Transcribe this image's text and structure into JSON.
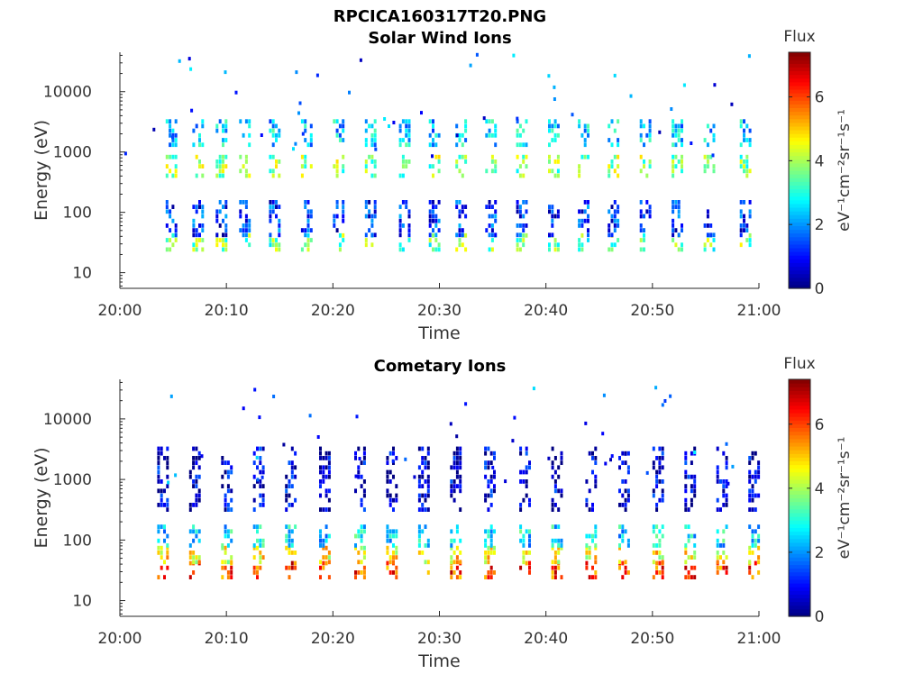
{
  "figure": {
    "title": "RPCICA160317T20.PNG"
  },
  "chart_data": [
    {
      "type": "heatmap",
      "title": "Solar Wind Ions",
      "xlabel": "Time",
      "ylabel": "Energy (eV)",
      "x_range": [
        "20:00",
        "21:00"
      ],
      "x_ticks": [
        "20:00",
        "20:10",
        "20:20",
        "20:30",
        "20:40",
        "20:50",
        "21:00"
      ],
      "y_scale": "log",
      "y_range": [
        5.5,
        45000
      ],
      "y_ticks": [
        10,
        100,
        1000,
        10000
      ],
      "y_tick_labels": [
        "10",
        "100",
        "1000",
        "10000"
      ],
      "colorbar": {
        "title": "Flux",
        "label": "eV⁻¹cm⁻²sr⁻¹s⁻¹",
        "range": [
          0,
          7.4
        ],
        "ticks": [
          0,
          2,
          4,
          6
        ],
        "colormap": "jet"
      },
      "scan_start_min": [
        4.3,
        6.8,
        9.0,
        11.2,
        14.0,
        17.0,
        20.0,
        23.0,
        26.2,
        29.0,
        31.5,
        34.3,
        37.2,
        40.2,
        43.0,
        45.8,
        48.8,
        51.8,
        54.8,
        58.2
      ],
      "components": [
        {
          "emin": 25,
          "emax": 45,
          "level": 3.6
        },
        {
          "emin": 45,
          "emax": 160,
          "level": 1.2
        },
        {
          "emin": 400,
          "emax": 900,
          "level": 3.8
        },
        {
          "emin": 1200,
          "emax": 3500,
          "level": 2.4
        }
      ]
    },
    {
      "type": "heatmap",
      "title": "Cometary Ions",
      "xlabel": "Time",
      "ylabel": "Energy (eV)",
      "x_range": [
        "20:00",
        "21:00"
      ],
      "x_ticks": [
        "20:00",
        "20:10",
        "20:20",
        "20:30",
        "20:40",
        "20:50",
        "21:00"
      ],
      "y_scale": "log",
      "y_range": [
        5.5,
        45000
      ],
      "y_ticks": [
        10,
        100,
        1000,
        10000
      ],
      "y_tick_labels": [
        "10",
        "100",
        "1000",
        "10000"
      ],
      "colorbar": {
        "title": "Flux",
        "label": "eV⁻¹cm⁻²sr⁻¹s⁻¹",
        "range": [
          0,
          7.4
        ],
        "ticks": [
          0,
          2,
          4,
          6
        ],
        "colormap": "jet"
      },
      "scan_start_min": [
        3.5,
        6.5,
        9.5,
        12.5,
        15.5,
        18.7,
        22.0,
        25.0,
        28.0,
        31.0,
        34.2,
        37.5,
        40.5,
        43.7,
        46.8,
        50.0,
        53.0,
        56.0,
        59.0
      ],
      "components": [
        {
          "emin": 25,
          "emax": 45,
          "level": 6.0
        },
        {
          "emin": 45,
          "emax": 80,
          "level": 4.6
        },
        {
          "emin": 80,
          "emax": 180,
          "level": 2.6
        },
        {
          "emin": 300,
          "emax": 3500,
          "level": 0.6
        }
      ]
    }
  ]
}
